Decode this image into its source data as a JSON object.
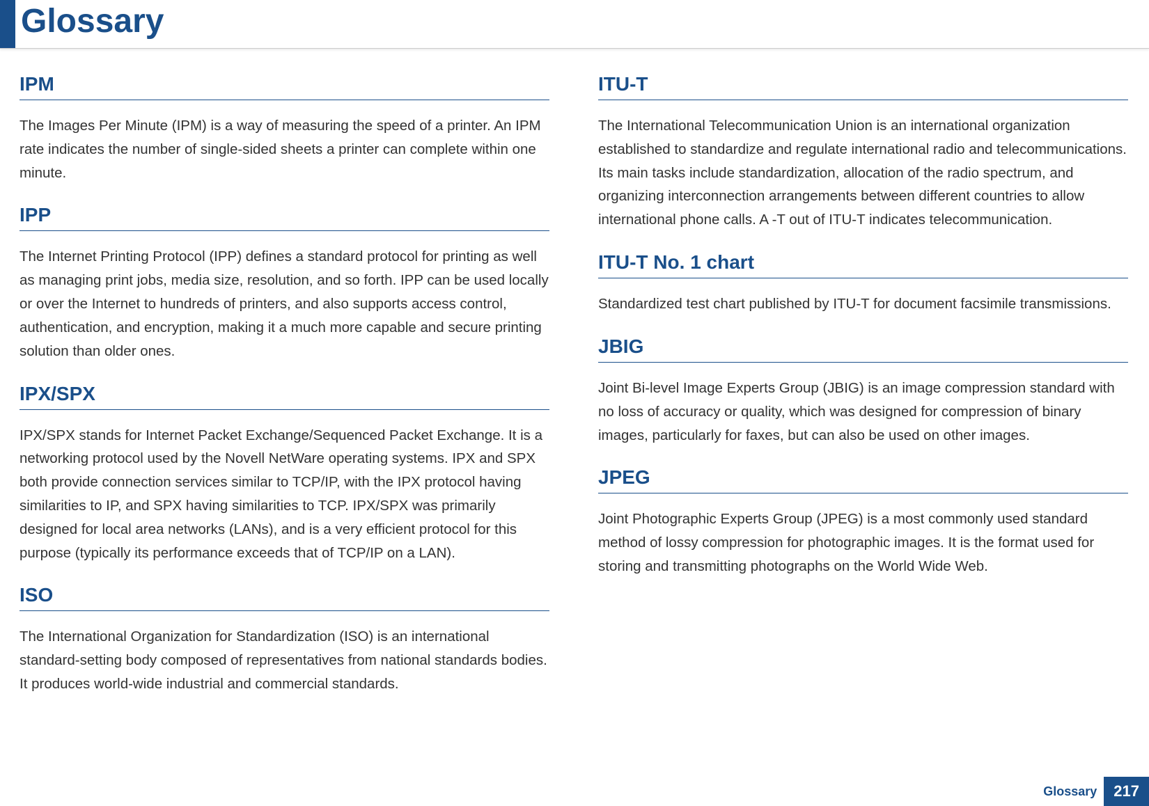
{
  "header": {
    "title": "Glossary",
    "accent_color": "#1a4f8a"
  },
  "left_column": [
    {
      "term": "IPM",
      "definition": "The Images Per Minute (IPM) is a way of measuring the speed of a printer. An IPM rate indicates the number of single-sided sheets a printer can complete within one minute."
    },
    {
      "term": "IPP",
      "definition": "The Internet Printing Protocol (IPP) defines a standard protocol for printing as well as managing print jobs, media size, resolution, and so forth. IPP can be used locally or over the Internet to hundreds of printers, and also supports access control, authentication, and encryption, making it a much more capable and secure printing solution than older ones."
    },
    {
      "term": "IPX/SPX",
      "definition": "IPX/SPX stands for Internet Packet Exchange/Sequenced Packet Exchange. It is a networking protocol used by the Novell NetWare operating systems. IPX and SPX both provide connection services similar to TCP/IP, with the IPX protocol having similarities to IP, and SPX having similarities to TCP. IPX/SPX was primarily designed for local area networks (LANs), and is a very efficient protocol for this purpose (typically its performance exceeds that of TCP/IP on a LAN)."
    },
    {
      "term": "ISO",
      "definition": "The International Organization for Standardization (ISO) is an international standard-setting body composed of representatives from national standards bodies. It produces world-wide industrial and commercial standards."
    }
  ],
  "right_column": [
    {
      "term": "ITU-T",
      "definition": "The International Telecommunication Union is an international organization established to standardize and regulate international radio and telecommunications. Its main tasks include standardization, allocation of the radio spectrum, and organizing interconnection arrangements between different countries to allow international phone calls. A -T out of ITU-T indicates telecommunication."
    },
    {
      "term": "ITU-T No. 1 chart",
      "definition": "Standardized test chart published by ITU-T for document facsimile transmissions."
    },
    {
      "term": "JBIG",
      "definition": "Joint Bi-level Image Experts Group (JBIG) is an image compression standard with no loss of accuracy or quality, which was designed for compression of binary images, particularly for faxes, but can also be used on other images."
    },
    {
      "term": "JPEG",
      "definition": "Joint Photographic Experts Group (JPEG) is a most commonly used standard method of lossy compression for photographic images. It is the format used for storing and transmitting photographs on the World Wide Web."
    }
  ],
  "footer": {
    "label": "Glossary",
    "page": "217"
  },
  "styles": {
    "term_color": "#1a4f8a",
    "term_fontsize": 28,
    "body_fontsize": 20.5,
    "body_color": "#333333",
    "background": "#ffffff",
    "header_fontsize": 48
  }
}
